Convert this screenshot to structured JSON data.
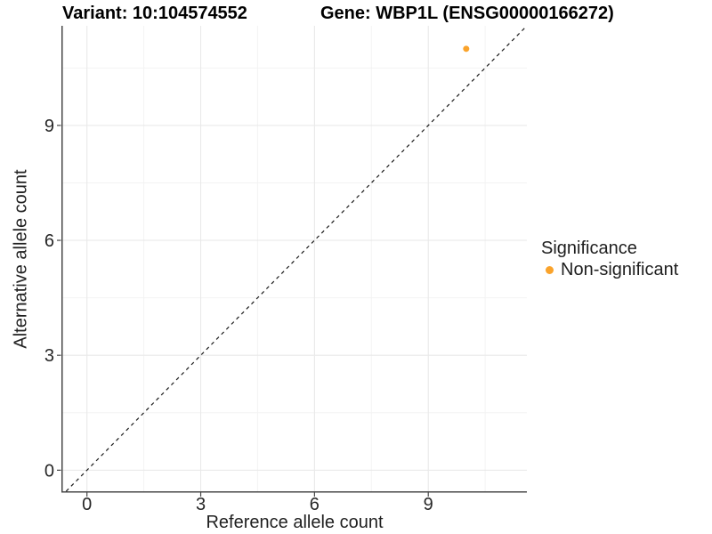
{
  "titles": {
    "variant": "Variant: 10:104574552",
    "gene": "Gene: WBP1L (ENSG00000166272)"
  },
  "axes": {
    "x": {
      "title": "Reference allele count",
      "ticks": [
        "0",
        "3",
        "6",
        "9"
      ]
    },
    "y": {
      "title": "Alternative allele count",
      "ticks": [
        "0",
        "3",
        "6",
        "9"
      ]
    }
  },
  "legend": {
    "title": "Significance",
    "items": [
      {
        "label": "Non-significant",
        "color": "#FAA32B",
        "shape": "circle"
      }
    ]
  },
  "colors": {
    "point_orange": "#FAA32B",
    "grid_major": "#E9E9E9",
    "grid_minor": "#F3F3F3",
    "axis_line": "#474747",
    "tick_text": "#262626",
    "reference_line": "#1a1a1a"
  },
  "chart_data": {
    "type": "scatter",
    "title": "Variant: 10:104574552 — Gene: WBP1L (ENSG00000166272)",
    "xlabel": "Reference allele count",
    "ylabel": "Alternative allele count",
    "xlim": [
      -0.65,
      11.6
    ],
    "ylim": [
      -0.55,
      11.6
    ],
    "xticks": [
      0,
      3,
      6,
      9
    ],
    "yticks": [
      0,
      3,
      6,
      9
    ],
    "xminor": [
      1.5,
      4.5,
      7.5,
      10.5
    ],
    "yminor": [
      1.5,
      4.5,
      7.5,
      10.5
    ],
    "grid": true,
    "legend_title": "Significance",
    "legend_position": "right",
    "reference_line": {
      "type": "abline",
      "slope": 1,
      "intercept": 0,
      "linetype": "dashed"
    },
    "series": [
      {
        "name": "Non-significant",
        "color": "#FAA32B",
        "points": [
          {
            "x": 10,
            "y": 11
          }
        ]
      }
    ]
  }
}
